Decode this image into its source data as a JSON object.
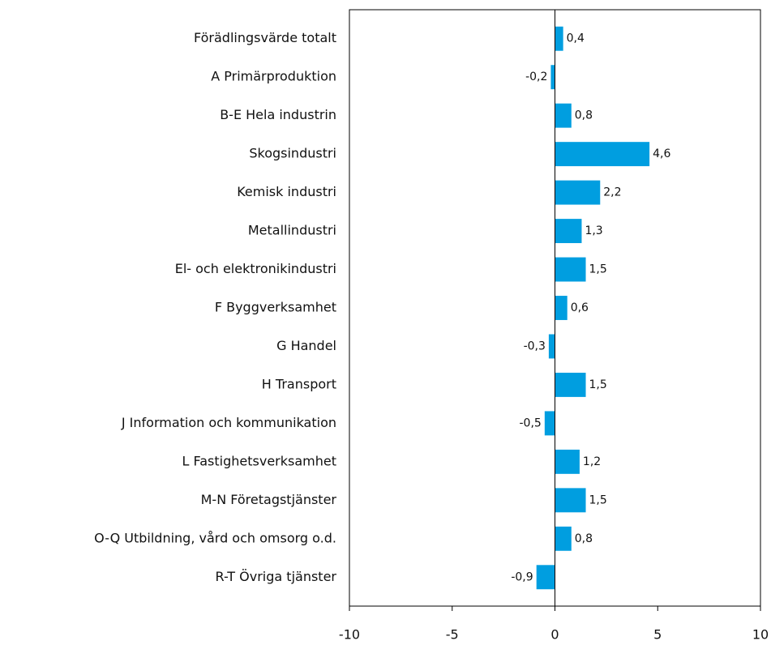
{
  "chart_data": {
    "type": "bar",
    "orientation": "horizontal",
    "categories": [
      "Förädlingsvärde totalt",
      "A Primärproduktion",
      "B-E Hela industrin",
      "Skogsindustri",
      "Kemisk industri",
      "Metallindustri",
      "El- och elektronikindustri",
      "F Byggverksamhet",
      "G Handel",
      "H Transport",
      "J Information och kommunikation",
      "L Fastighetsverksamhet",
      "M-N Företagstjänster",
      "O-Q Utbildning, vård och omsorg o.d.",
      "R-T Övriga tjänster"
    ],
    "values": [
      0.4,
      -0.2,
      0.8,
      4.6,
      2.2,
      1.3,
      1.5,
      0.6,
      -0.3,
      1.5,
      -0.5,
      1.2,
      1.5,
      0.8,
      -0.9
    ],
    "value_labels": [
      "0,4",
      "-0,2",
      "0,8",
      "4,6",
      "2,2",
      "1,3",
      "1,5",
      "0,6",
      "-0,3",
      "1,5",
      "-0,5",
      "1,2",
      "1,5",
      "0,8",
      "-0,9"
    ],
    "color": "#009ee0",
    "xlim": [
      -10,
      10
    ],
    "xticks": [
      -10,
      -5,
      0,
      5,
      10
    ]
  }
}
